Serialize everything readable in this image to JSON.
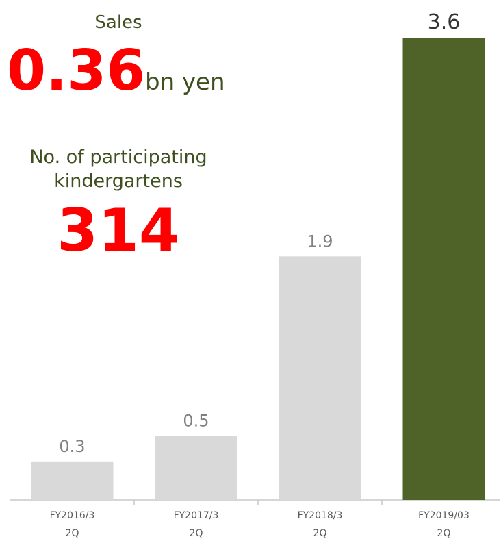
{
  "chart_data": {
    "type": "bar",
    "categories": [
      [
        "FY2016/3",
        "2Q"
      ],
      [
        "FY2017/3",
        "2Q"
      ],
      [
        "FY2018/3",
        "2Q"
      ],
      [
        "FY2019/03",
        "2Q"
      ]
    ],
    "values": [
      0.3,
      0.5,
      1.9,
      3.6
    ],
    "colors": [
      "#d9d9d9",
      "#d9d9d9",
      "#d9d9d9",
      "#4f6228"
    ],
    "annotations": {
      "sales_label": "Sales",
      "sales_value": "0.36",
      "sales_unit": "bn yen",
      "kindergartens_label": [
        "No. of participating",
        "kindergartens"
      ],
      "kindergartens_value": "314"
    }
  }
}
